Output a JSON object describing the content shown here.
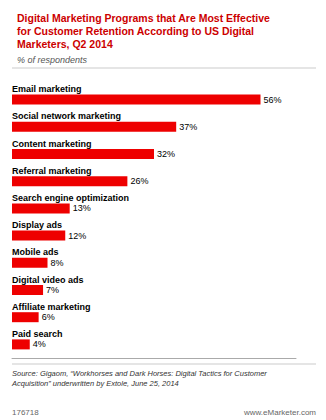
{
  "chart_data": {
    "type": "bar",
    "orientation": "horizontal",
    "title": "Digital Marketing Programs that Are Most Effective\nfor Customer Retention According to US Digital\nMarketers, Q2 2014",
    "subtitle": "% of respondents",
    "categories": [
      "Email marketing",
      "Social network marketing",
      "Content marketing",
      "Referral marketing",
      "Search engine optimization",
      "Display ads",
      "Mobile ads",
      "Digital video ads",
      "Affiliate marketing",
      "Paid search"
    ],
    "values": [
      56,
      37,
      32,
      26,
      13,
      12,
      8,
      7,
      6,
      4
    ],
    "value_labels": [
      "56%",
      "37%",
      "32%",
      "26%",
      "13%",
      "12%",
      "8%",
      "7%",
      "6%",
      "4%"
    ],
    "data_labels": true,
    "color": "#ee0000",
    "xlim": [
      0,
      64
    ],
    "tick_labels": "y",
    "grid": false,
    "annotations": [
      "Source: Gigaom, “Workhorses and Dark Horses: Digital Tactics for Customer\nAcquisition” underwritten by Extole, June 25, 2014",
      "176718",
      "www.eMarketer.com"
    ]
  }
}
